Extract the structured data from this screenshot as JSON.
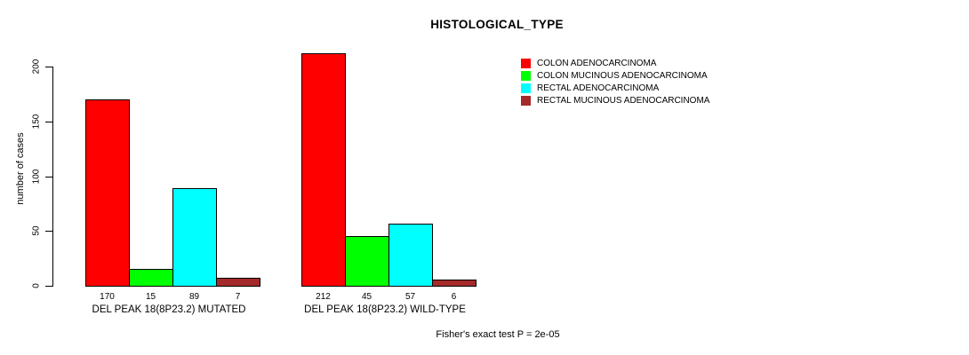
{
  "chart_data": {
    "type": "bar",
    "title": "HISTOLOGICAL_TYPE",
    "ylabel": "number of cases",
    "xlabel": "",
    "ylim": [
      0,
      200
    ],
    "yticks": [
      0,
      50,
      100,
      150,
      200
    ],
    "grid": false,
    "legend_position": "top-right",
    "categories": [
      "COLON ADENOCARCINOMA",
      "COLON MUCINOUS ADENOCARCINOMA",
      "RECTAL ADENOCARCINOMA",
      "RECTAL MUCINOUS ADENOCARCINOMA"
    ],
    "colors": [
      "#ff0000",
      "#00ff00",
      "#00ffff",
      "#a52a2a"
    ],
    "groups": [
      {
        "label": "DEL PEAK 18(8P23.2) MUTATED",
        "values": [
          170,
          15,
          89,
          7
        ]
      },
      {
        "label": "DEL PEAK 18(8P23.2) WILD-TYPE",
        "values": [
          212,
          45,
          57,
          6
        ]
      }
    ],
    "annotation": "Fisher's exact test P = 2e-05"
  }
}
